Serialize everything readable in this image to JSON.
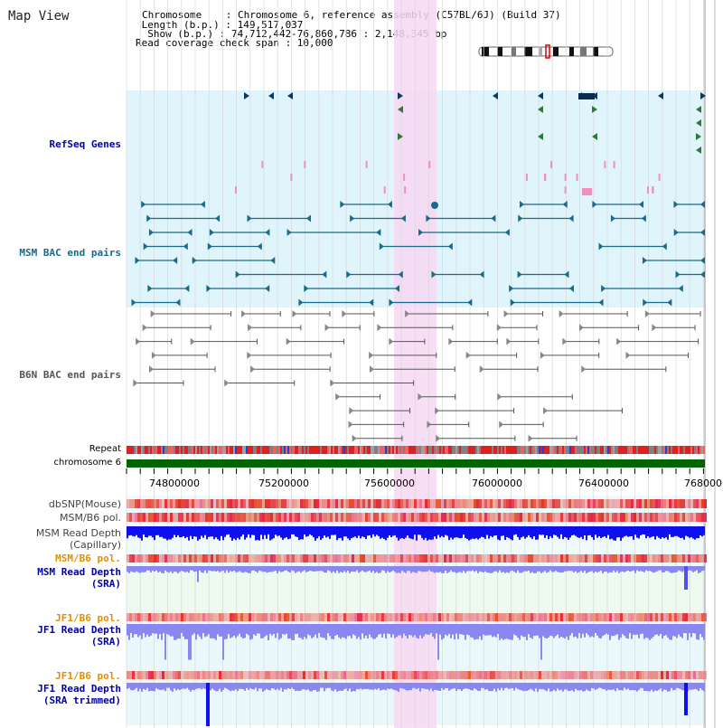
{
  "header": {
    "title": "Map View",
    "chromosome_line": "Chromosome    : Chromosome 6, reference assembly (C57BL/6J) (Build 37)",
    "length_line": " Length (b.p.) : 149,517,037",
    "show_line": "  Show (b.p.) : 74,712,442-76,860,786 : 2,148,345 bp",
    "coverage_line": "Read coverage check span : 10,000"
  },
  "tracks": {
    "refseq": "RefSeq Genes",
    "msm_bac": "MSM BAC end pairs",
    "b6n_bac": "B6N BAC end pairs",
    "repeat": "Repeat",
    "chromosome": "chromosome 6",
    "dbsnp": "dbSNP(Mouse)",
    "msm_b6_pol_1": "MSM/B6 pol.",
    "msm_read_depth_cap_1": "MSM Read Depth",
    "msm_read_depth_cap_2": "(Capillary)",
    "msm_b6_pol_2": "MSM/B6 pol.",
    "msm_read_depth_sra_1": "MSM Read Depth",
    "msm_read_depth_sra_2": "(SRA)",
    "jf1_b6_pol_1": "JF1/B6 pol.",
    "jf1_read_depth_sra_1": "JF1 Read Depth",
    "jf1_read_depth_sra_2": "(SRA)",
    "jf1_b6_pol_2": "JF1/B6 pol.",
    "jf1_read_depth_trim_1": "JF1 Read Depth",
    "jf1_read_depth_trim_2": "(SRA trimmed)"
  },
  "axis": {
    "ticks": [
      "74800000",
      "75200000",
      "75600000",
      "76000000",
      "76400000",
      "768000"
    ]
  },
  "colors": {
    "refseq_bg": "#e0f4fb",
    "msm_bg": "#e0f4fb",
    "highlight": "#f7d8f2",
    "chromosome_bar": "#006400",
    "msm_color": "#1a6a8a",
    "b6n_color": "#555555",
    "depth_blue": "#1010ee",
    "depth_light": "#8888f0",
    "label_blue": "#0000aa",
    "label_orange": "#e09000",
    "label_teal": "#1a6a8a"
  }
}
